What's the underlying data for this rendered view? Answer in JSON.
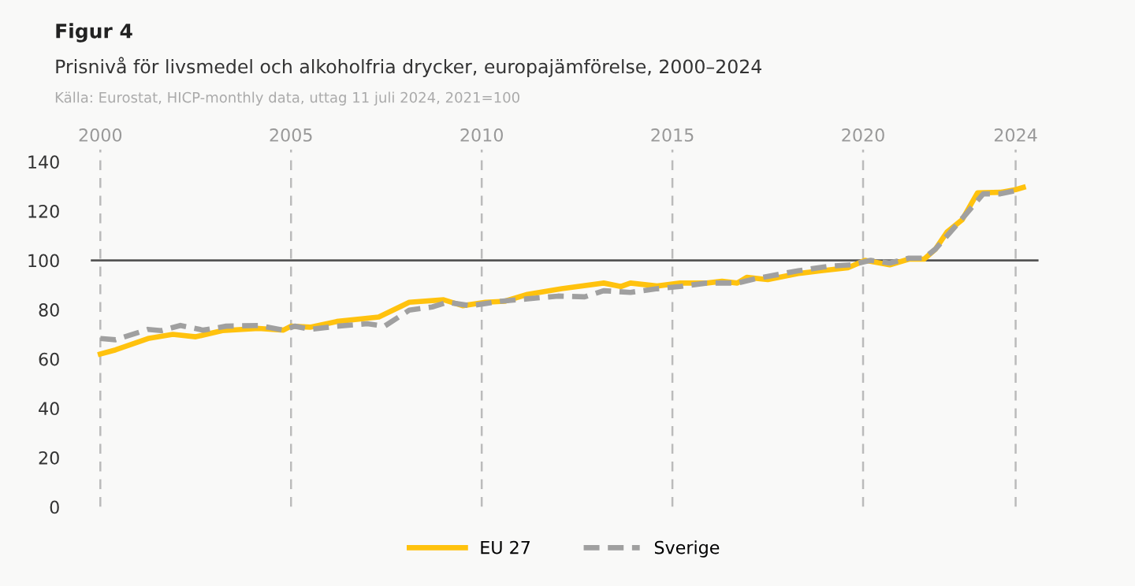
{
  "chart_data": {
    "type": "line",
    "title": "Figur 4",
    "subtitle": "Prisnivå för livsmedel och alkoholfria drycker, europajämförelse, 2000–2024",
    "annotations": [
      "Källa: Eurostat, HICP-monthly data, uttag 11 juli 2024, 2021=100"
    ],
    "xlim": [
      1999.75,
      2024.6
    ],
    "xticks": [
      2000,
      2005,
      2010,
      2015,
      2020,
      2024
    ],
    "ylim": [
      0,
      145
    ],
    "yticks": [
      0,
      20,
      40,
      60,
      80,
      100,
      120,
      140
    ],
    "grid": "x",
    "legend": "bottom",
    "marker": "none",
    "ref_lines": [
      {
        "axis": "y",
        "value": 100,
        "color": "#555555"
      }
    ],
    "series": [
      {
        "name": "EU 27",
        "color": "#ffc20e",
        "line_style": "solid",
        "x": [
          2000.0,
          2000.4,
          2001.25,
          2001.9,
          2002.5,
          2003.2,
          2004.15,
          2004.8,
          2005.0,
          2005.5,
          2006.2,
          2007.3,
          2008.1,
          2009.0,
          2009.5,
          2010.1,
          2010.6,
          2011.2,
          2012.1,
          2013.2,
          2013.65,
          2013.9,
          2014.6,
          2015.2,
          2015.9,
          2016.3,
          2016.7,
          2016.95,
          2017.5,
          2018.3,
          2018.9,
          2019.6,
          2020.05,
          2020.7,
          2021.2,
          2021.6,
          2021.9,
          2022.2,
          2022.6,
          2023.0,
          2023.6,
          2024.0,
          2024.2
        ],
        "values": [
          62,
          63.7,
          68.3,
          70,
          69,
          71.5,
          72.4,
          71.7,
          73.3,
          72.9,
          75.2,
          77,
          83,
          84,
          81.6,
          83,
          83.4,
          86.2,
          88.5,
          90.8,
          89.4,
          90.8,
          89.6,
          90.8,
          90.8,
          91.5,
          90.8,
          93.1,
          92.2,
          94.7,
          95.8,
          97,
          100,
          98.2,
          100.5,
          100.5,
          104.6,
          111.5,
          116.5,
          127.4,
          127.6,
          128.7,
          129.6
        ]
      },
      {
        "name": "Sverige",
        "color": "#a0a0a0",
        "line_style": "dashed",
        "x": [
          2000.0,
          2000.4,
          2001.25,
          2001.6,
          2002.1,
          2002.7,
          2003.3,
          2004.15,
          2004.8,
          2005.1,
          2005.5,
          2006.2,
          2007.0,
          2007.45,
          2008.1,
          2008.7,
          2009.1,
          2009.7,
          2010.5,
          2011.2,
          2012.0,
          2012.7,
          2013.2,
          2013.9,
          2014.6,
          2015.2,
          2015.9,
          2016.7,
          2017.2,
          2018.3,
          2019.15,
          2019.7,
          2020.2,
          2020.7,
          2021.2,
          2021.6,
          2021.9,
          2022.7,
          2023.15,
          2023.6,
          2024.05
        ],
        "values": [
          68.3,
          67.8,
          72,
          71.5,
          73.6,
          71.7,
          73.3,
          73.6,
          71.7,
          73.3,
          72,
          73.3,
          74.3,
          73.3,
          79.8,
          81.1,
          83,
          81.6,
          83.4,
          84.4,
          85.5,
          85.2,
          87.7,
          87,
          88.5,
          89.4,
          90.8,
          90.8,
          92.6,
          95.8,
          97.7,
          98.2,
          100,
          98.9,
          100.9,
          100.9,
          104.6,
          118.8,
          127,
          127,
          128.5
        ]
      }
    ]
  }
}
